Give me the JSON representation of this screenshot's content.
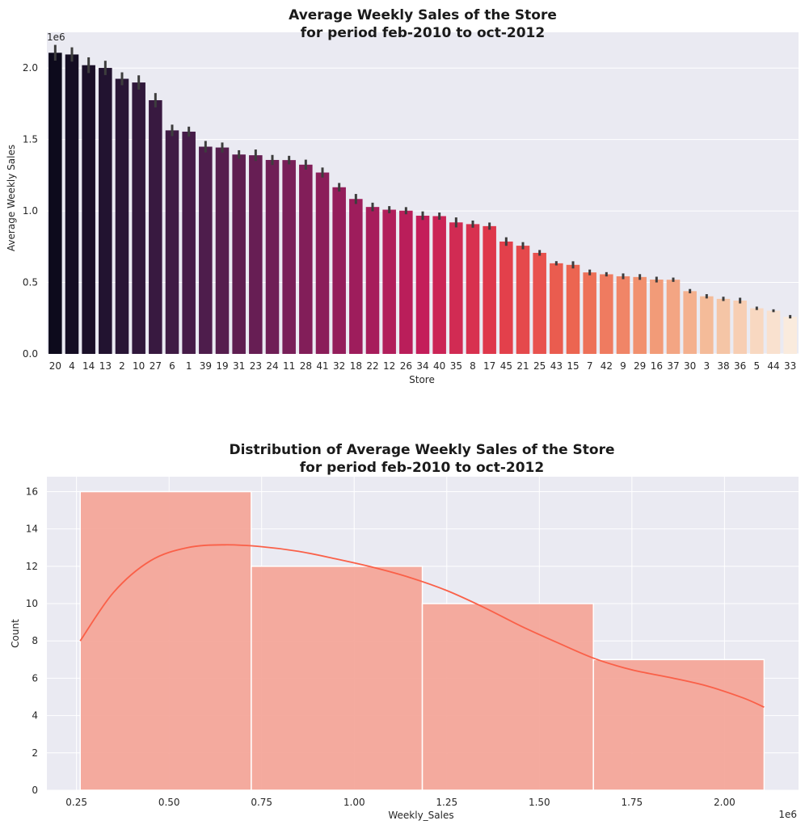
{
  "chart_data": [
    {
      "type": "bar",
      "title_line1": "Average Weekly Sales of the Store",
      "title_line2": "for period feb-2010 to oct-2012",
      "xlabel": "Store",
      "ylabel": "Average Weekly Sales",
      "y_multiplier_label": "1e6",
      "ylim": [
        0,
        2.25
      ],
      "yticks": [
        0,
        0.5,
        1.0,
        1.5,
        2.0
      ],
      "ytick_labels": [
        "0.0",
        "0.5",
        "1.0",
        "1.5",
        "2.0"
      ],
      "grid": true,
      "categories": [
        "20",
        "4",
        "14",
        "13",
        "2",
        "10",
        "27",
        "6",
        "1",
        "39",
        "19",
        "31",
        "23",
        "24",
        "11",
        "28",
        "41",
        "32",
        "18",
        "22",
        "12",
        "26",
        "34",
        "40",
        "35",
        "8",
        "17",
        "45",
        "21",
        "25",
        "43",
        "15",
        "7",
        "42",
        "9",
        "29",
        "16",
        "37",
        "30",
        "3",
        "38",
        "36",
        "5",
        "44",
        "33"
      ],
      "values": [
        2.107,
        2.095,
        2.02,
        2.001,
        1.925,
        1.899,
        1.775,
        1.564,
        1.555,
        1.45,
        1.444,
        1.395,
        1.39,
        1.357,
        1.356,
        1.324,
        1.269,
        1.166,
        1.084,
        1.028,
        1.009,
        1.002,
        0.967,
        0.964,
        0.92,
        0.908,
        0.894,
        0.786,
        0.757,
        0.707,
        0.634,
        0.623,
        0.57,
        0.557,
        0.543,
        0.538,
        0.52,
        0.519,
        0.439,
        0.403,
        0.385,
        0.373,
        0.319,
        0.302,
        0.26
      ],
      "error_bars": [
        0.055,
        0.05,
        0.055,
        0.05,
        0.045,
        0.05,
        0.05,
        0.04,
        0.035,
        0.04,
        0.035,
        0.03,
        0.04,
        0.035,
        0.03,
        0.035,
        0.035,
        0.03,
        0.035,
        0.03,
        0.025,
        0.025,
        0.03,
        0.025,
        0.035,
        0.025,
        0.025,
        0.03,
        0.025,
        0.02,
        0.015,
        0.025,
        0.02,
        0.015,
        0.02,
        0.02,
        0.02,
        0.015,
        0.015,
        0.015,
        0.015,
        0.02,
        0.012,
        0.01,
        0.012
      ],
      "palette": "rocket"
    },
    {
      "type": "histogram",
      "title_line1": "Distribution of Average Weekly Sales of the Store",
      "title_line2": "for period feb-2010 to oct-2012",
      "xlabel": "Weekly_Sales",
      "ylabel": "Count",
      "x_multiplier_label": "1e6",
      "xlim": [
        0.17,
        2.2
      ],
      "ylim": [
        0,
        16.8
      ],
      "xticks": [
        0.25,
        0.5,
        0.75,
        1.0,
        1.25,
        1.5,
        1.75,
        2.0
      ],
      "xtick_labels": [
        "0.25",
        "0.50",
        "0.75",
        "1.00",
        "1.25",
        "1.50",
        "1.75",
        "2.00"
      ],
      "yticks": [
        0,
        2,
        4,
        6,
        8,
        10,
        12,
        14,
        16
      ],
      "ytick_labels": [
        "0",
        "2",
        "4",
        "6",
        "8",
        "10",
        "12",
        "14",
        "16"
      ],
      "grid": true,
      "bins": [
        {
          "x0": 0.26,
          "x1": 0.722,
          "count": 16
        },
        {
          "x0": 0.722,
          "x1": 1.184,
          "count": 12
        },
        {
          "x0": 1.184,
          "x1": 1.646,
          "count": 10
        },
        {
          "x0": 1.646,
          "x1": 2.107,
          "count": 7
        }
      ],
      "bar_color": "#f4a497",
      "kde_color": "#fa6048",
      "kde": {
        "x": [
          0.26,
          0.35,
          0.45,
          0.55,
          0.65,
          0.75,
          0.85,
          0.95,
          1.05,
          1.15,
          1.25,
          1.35,
          1.45,
          1.55,
          1.65,
          1.75,
          1.85,
          1.95,
          2.05,
          2.107
        ],
        "y": [
          8.0,
          10.6,
          12.3,
          13.0,
          13.15,
          13.05,
          12.8,
          12.4,
          11.95,
          11.4,
          10.7,
          9.8,
          8.8,
          7.9,
          7.05,
          6.45,
          6.05,
          5.6,
          4.95,
          4.45
        ]
      }
    }
  ]
}
